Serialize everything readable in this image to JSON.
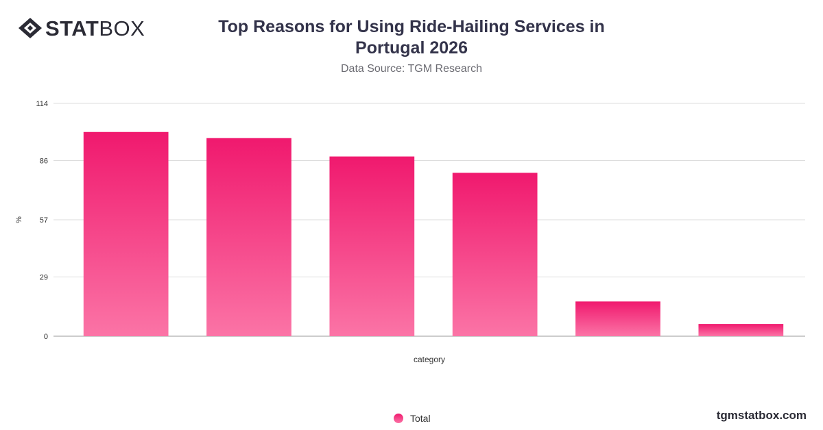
{
  "brand": {
    "bold": "STAT",
    "regular": "BOX",
    "url": "tgmstatbox.com"
  },
  "colors": {
    "bar_top": "#f0196e",
    "bar_bottom": "#fb74a6",
    "grid": "#dcdcdc",
    "axis": "#999999"
  },
  "chart_data": {
    "type": "bar",
    "title": "Top Reasons for Using Ride-Hailing Services in Portugal 2026",
    "subtitle": "Data Source: TGM Research",
    "xlabel": "category",
    "ylabel": "%",
    "ylim": [
      0,
      114
    ],
    "yticks": [
      0,
      29,
      57,
      86,
      114
    ],
    "grid": true,
    "legend_position": "bottom-center",
    "series": [
      {
        "name": "Total",
        "values": [
          100,
          97,
          88,
          80,
          17,
          6
        ]
      }
    ]
  }
}
